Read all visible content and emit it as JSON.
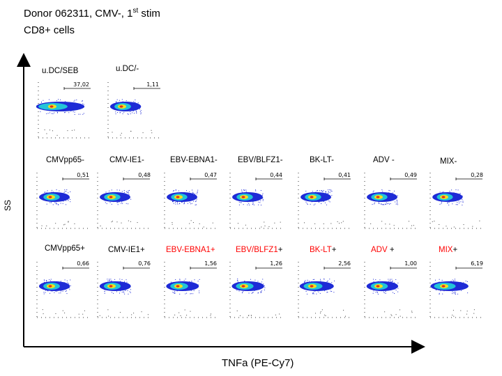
{
  "header": {
    "title_prefix": "Donor 062311, CMV-, 1",
    "title_superscript": "st",
    "title_suffix": " stim",
    "subtitle": "CD8+ cells"
  },
  "axes": {
    "y_label": "SS",
    "x_label": "TNFa  (PE-Cy7)"
  },
  "colors": {
    "positive_label": "#ff0000",
    "density_low": "#1e2bd6",
    "density_mid": "#22c4d8",
    "density_high": "#f0e020",
    "density_peak": "#e22a1e"
  },
  "controls": [
    {
      "label": "u.DC/SEB",
      "percentage": "37,02",
      "spread": 0.55
    },
    {
      "label": "u.DC/-",
      "percentage": "1,11",
      "spread": 0.05
    }
  ],
  "rows": [
    {
      "name": "negative",
      "samples": [
        {
          "label": "CMVpp65-",
          "percentage": "0,51",
          "spread": 0.04
        },
        {
          "label": "CMV-IE1-",
          "percentage": "0,48",
          "spread": 0.04
        },
        {
          "label": "EBV-EBNA1-",
          "percentage": "0,47",
          "spread": 0.04
        },
        {
          "label": "EBV/BLFZ1-",
          "percentage": "0,44",
          "spread": 0.04
        },
        {
          "label": "BK-LT-",
          "percentage": "0,41",
          "spread": 0.04
        },
        {
          "label": "ADV -",
          "percentage": "0,49",
          "spread": 0.04
        },
        {
          "label": "MIX-",
          "percentage": "0,28",
          "spread": 0.03
        }
      ]
    },
    {
      "name": "positive",
      "samples": [
        {
          "label": "CMVpp65+",
          "colored_part": "",
          "plain_part": "",
          "percentage": "0,66",
          "spread": 0.05
        },
        {
          "label": "CMV-IE1+",
          "colored_part": "",
          "plain_part": "",
          "percentage": "0,76",
          "spread": 0.06
        },
        {
          "label": "EBV-EBNA1+",
          "colored_part": "EBV-EBNA1+",
          "plain_part": "",
          "percentage": "1,56",
          "spread": 0.1
        },
        {
          "label": "EBV/BLFZ1+",
          "colored_part": "EBV/BLFZ1",
          "plain_part": "+",
          "percentage": "1,26",
          "spread": 0.09
        },
        {
          "label": "BK-LT+",
          "colored_part": "BK-LT",
          "plain_part": "+",
          "percentage": "2,56",
          "spread": 0.14
        },
        {
          "label": "ADV +",
          "colored_part": "ADV",
          "plain_part": " +",
          "percentage": "1,00",
          "spread": 0.07
        },
        {
          "label": "MIX+",
          "colored_part": "MIX",
          "plain_part": "+",
          "percentage": "6,19",
          "spread": 0.25
        }
      ]
    }
  ]
}
